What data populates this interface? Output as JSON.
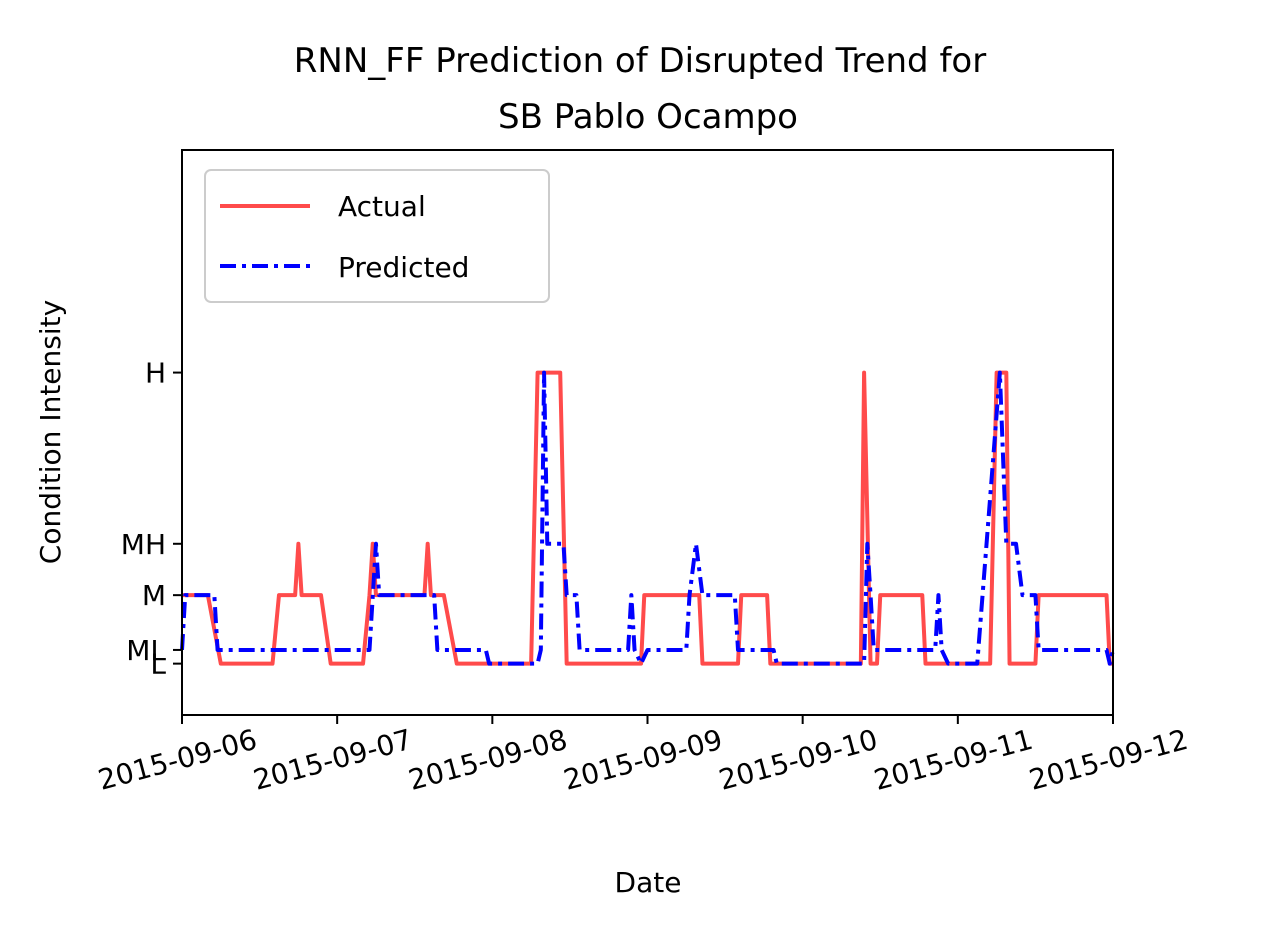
{
  "chart_data": {
    "type": "line",
    "title": "RNN_FF Prediction of Disrupted Trend for",
    "title_line2": "SB Pablo Ocampo",
    "xlabel": "Date",
    "ylabel": "Condition Intensity",
    "xlim": [
      "2015-09-06",
      "2015-09-12"
    ],
    "ylim_levels": [
      "L",
      "H"
    ],
    "x_ticks": [
      "2015-09-06",
      "2015-09-07",
      "2015-09-08",
      "2015-09-09",
      "2015-09-10",
      "2015-09-11",
      "2015-09-12"
    ],
    "y_ticks": [
      {
        "label": "L",
        "value": 0.0
      },
      {
        "label": "ML",
        "value": 0.08
      },
      {
        "label": "M",
        "value": 0.4
      },
      {
        "label": "MH",
        "value": 0.7
      },
      {
        "label": "H",
        "value": 1.7
      }
    ],
    "ylim": [
      -0.3,
      3.0
    ],
    "legend": {
      "position": "top-left",
      "entries": [
        "Actual",
        "Predicted"
      ]
    },
    "grid": false,
    "colors": {
      "actual": "#ff4b4b",
      "predicted": "#0000ff"
    },
    "series": [
      {
        "name": "Actual",
        "style": "solid",
        "color": "#ff4b4b",
        "points": [
          [
            "2015-09-06 00:00",
            0.4
          ],
          [
            "2015-09-06 04:00",
            0.4
          ],
          [
            "2015-09-06 06:00",
            0.0
          ],
          [
            "2015-09-06 14:00",
            0.0
          ],
          [
            "2015-09-06 15:00",
            0.4
          ],
          [
            "2015-09-06 17:30",
            0.4
          ],
          [
            "2015-09-06 18:00",
            0.7
          ],
          [
            "2015-09-06 18:30",
            0.4
          ],
          [
            "2015-09-06 21:30",
            0.4
          ],
          [
            "2015-09-06 23:00",
            0.0
          ],
          [
            "2015-09-07 04:00",
            0.0
          ],
          [
            "2015-09-07 05:00",
            0.4
          ],
          [
            "2015-09-07 05:30",
            0.7
          ],
          [
            "2015-09-07 06:00",
            0.4
          ],
          [
            "2015-09-07 13:30",
            0.4
          ],
          [
            "2015-09-07 14:00",
            0.7
          ],
          [
            "2015-09-07 14:30",
            0.4
          ],
          [
            "2015-09-07 16:30",
            0.4
          ],
          [
            "2015-09-07 18:30",
            0.0
          ],
          [
            "2015-09-08 06:00",
            0.0
          ],
          [
            "2015-09-08 07:00",
            1.7
          ],
          [
            "2015-09-08 10:30",
            1.7
          ],
          [
            "2015-09-08 11:30",
            0.0
          ],
          [
            "2015-09-08 23:00",
            0.0
          ],
          [
            "2015-09-08 23:30",
            0.4
          ],
          [
            "2015-09-09 08:00",
            0.4
          ],
          [
            "2015-09-09 08:30",
            0.0
          ],
          [
            "2015-09-09 14:00",
            0.0
          ],
          [
            "2015-09-09 14:30",
            0.4
          ],
          [
            "2015-09-09 18:30",
            0.4
          ],
          [
            "2015-09-09 19:00",
            0.0
          ],
          [
            "2015-09-10 09:00",
            0.0
          ],
          [
            "2015-09-10 09:30",
            1.7
          ],
          [
            "2015-09-10 10:30",
            0.0
          ],
          [
            "2015-09-10 11:30",
            0.0
          ],
          [
            "2015-09-10 12:00",
            0.4
          ],
          [
            "2015-09-10 18:30",
            0.4
          ],
          [
            "2015-09-10 19:00",
            0.0
          ],
          [
            "2015-09-11 05:00",
            0.0
          ],
          [
            "2015-09-11 06:00",
            1.7
          ],
          [
            "2015-09-11 07:30",
            1.7
          ],
          [
            "2015-09-11 08:00",
            0.0
          ],
          [
            "2015-09-11 12:00",
            0.0
          ],
          [
            "2015-09-11 12:30",
            0.4
          ],
          [
            "2015-09-11 23:00",
            0.4
          ],
          [
            "2015-09-11 23:30",
            0.0
          ],
          [
            "2015-09-12 00:00",
            0.0
          ]
        ]
      },
      {
        "name": "Predicted",
        "style": "dashdot",
        "color": "#0000ff",
        "points": [
          [
            "2015-09-06 00:00",
            0.08
          ],
          [
            "2015-09-06 00:30",
            0.4
          ],
          [
            "2015-09-06 05:00",
            0.4
          ],
          [
            "2015-09-06 05:30",
            0.08
          ],
          [
            "2015-09-07 05:00",
            0.08
          ],
          [
            "2015-09-07 06:00",
            0.7
          ],
          [
            "2015-09-07 06:30",
            0.4
          ],
          [
            "2015-09-07 15:00",
            0.4
          ],
          [
            "2015-09-07 15:30",
            0.08
          ],
          [
            "2015-09-07 23:00",
            0.08
          ],
          [
            "2015-09-07 23:30",
            0.0
          ],
          [
            "2015-09-08 07:00",
            0.0
          ],
          [
            "2015-09-08 07:30",
            0.08
          ],
          [
            "2015-09-08 08:00",
            1.7
          ],
          [
            "2015-09-08 08:30",
            0.7
          ],
          [
            "2015-09-08 11:00",
            0.7
          ],
          [
            "2015-09-08 11:30",
            0.4
          ],
          [
            "2015-09-08 13:00",
            0.4
          ],
          [
            "2015-09-08 13:30",
            0.08
          ],
          [
            "2015-09-08 21:00",
            0.08
          ],
          [
            "2015-09-08 21:30",
            0.4
          ],
          [
            "2015-09-08 22:00",
            0.08
          ],
          [
            "2015-09-08 23:00",
            0.0
          ],
          [
            "2015-09-09 00:00",
            0.08
          ],
          [
            "2015-09-09 06:00",
            0.08
          ],
          [
            "2015-09-09 06:30",
            0.4
          ],
          [
            "2015-09-09 07:30",
            0.7
          ],
          [
            "2015-09-09 08:30",
            0.4
          ],
          [
            "2015-09-09 13:30",
            0.4
          ],
          [
            "2015-09-09 14:00",
            0.08
          ],
          [
            "2015-09-09 19:30",
            0.08
          ],
          [
            "2015-09-09 20:00",
            0.0
          ],
          [
            "2015-09-10 09:30",
            0.0
          ],
          [
            "2015-09-10 10:00",
            0.7
          ],
          [
            "2015-09-10 10:30",
            0.4
          ],
          [
            "2015-09-10 11:00",
            0.08
          ],
          [
            "2015-09-10 20:30",
            0.08
          ],
          [
            "2015-09-10 21:00",
            0.4
          ],
          [
            "2015-09-10 21:30",
            0.08
          ],
          [
            "2015-09-10 22:30",
            0.0
          ],
          [
            "2015-09-11 03:00",
            0.0
          ],
          [
            "2015-09-11 06:30",
            1.7
          ],
          [
            "2015-09-11 07:30",
            0.7
          ],
          [
            "2015-09-11 09:00",
            0.7
          ],
          [
            "2015-09-11 10:00",
            0.4
          ],
          [
            "2015-09-11 12:00",
            0.4
          ],
          [
            "2015-09-11 12:30",
            0.08
          ],
          [
            "2015-09-11 23:00",
            0.08
          ],
          [
            "2015-09-11 23:30",
            0.0
          ],
          [
            "2015-09-12 00:00",
            0.08
          ]
        ]
      }
    ]
  }
}
